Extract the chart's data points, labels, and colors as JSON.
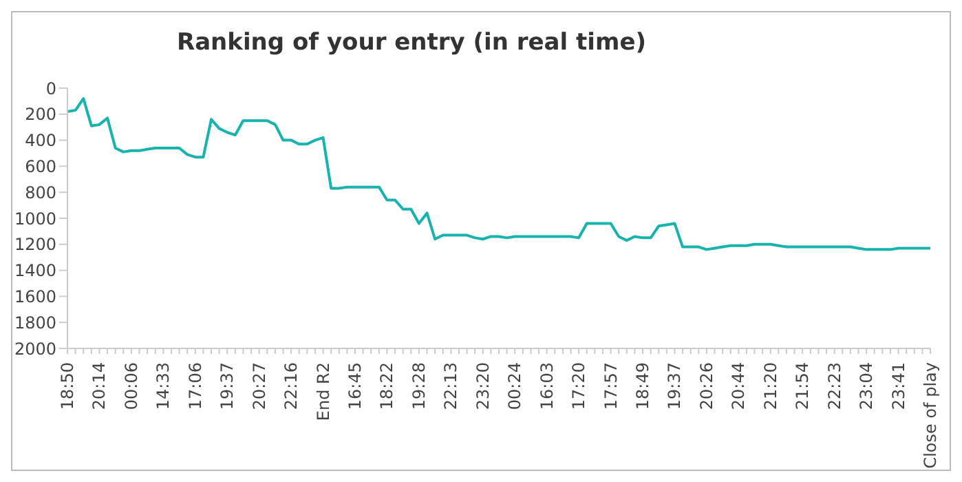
{
  "chart_data": {
    "type": "line",
    "title": "Ranking of your entry (in real time)",
    "categories": [
      "18:50",
      null,
      null,
      null,
      "20:14",
      null,
      null,
      null,
      "00:06",
      null,
      null,
      null,
      "14:33",
      null,
      null,
      null,
      "17:06",
      null,
      null,
      null,
      "19:37",
      null,
      null,
      null,
      "20:27",
      null,
      null,
      null,
      "22:16",
      null,
      null,
      null,
      "End R2",
      null,
      null,
      null,
      "16:45",
      null,
      null,
      null,
      "18:22",
      null,
      null,
      null,
      "19:28",
      null,
      null,
      null,
      "22:13",
      null,
      null,
      null,
      "23:20",
      null,
      null,
      null,
      "00:24",
      null,
      null,
      null,
      "16:03",
      null,
      null,
      null,
      "17:20",
      null,
      null,
      null,
      "17:57",
      null,
      null,
      null,
      "18:49",
      null,
      null,
      null,
      "19:37",
      null,
      null,
      null,
      "20:26",
      null,
      null,
      null,
      "20:44",
      null,
      null,
      null,
      "21:20",
      null,
      null,
      null,
      "21:54",
      null,
      null,
      null,
      "22:23",
      null,
      null,
      null,
      "23:04",
      null,
      null,
      null,
      "23:41",
      null,
      null,
      null,
      "Close of play"
    ],
    "series": [
      {
        "color": "#17b3ac",
        "values": [
          180,
          170,
          80,
          290,
          280,
          230,
          460,
          490,
          480,
          480,
          470,
          460,
          460,
          460,
          460,
          510,
          530,
          530,
          240,
          310,
          340,
          360,
          250,
          250,
          250,
          250,
          280,
          400,
          400,
          430,
          430,
          400,
          380,
          770,
          770,
          760,
          760,
          760,
          760,
          760,
          860,
          860,
          930,
          930,
          1040,
          960,
          1160,
          1130,
          1130,
          1130,
          1130,
          1150,
          1160,
          1140,
          1140,
          1150,
          1140,
          1140,
          1140,
          1140,
          1140,
          1140,
          1140,
          1140,
          1150,
          1040,
          1040,
          1040,
          1040,
          1140,
          1170,
          1140,
          1150,
          1150,
          1060,
          1050,
          1040,
          1220,
          1220,
          1220,
          1240,
          1230,
          1220,
          1210,
          1210,
          1210,
          1200,
          1200,
          1200,
          1210,
          1220,
          1220,
          1220,
          1220,
          1220,
          1220,
          1220,
          1220,
          1220,
          1230,
          1240,
          1240,
          1240,
          1240,
          1230,
          1230,
          1230,
          1230,
          1230
        ]
      }
    ],
    "ylim": [
      2000,
      0
    ],
    "yticks": [
      0,
      200,
      400,
      600,
      800,
      1000,
      1200,
      1400,
      1600,
      1800,
      2000
    ],
    "grid": false,
    "legend": false,
    "marker": "none",
    "line_style": "solid"
  }
}
